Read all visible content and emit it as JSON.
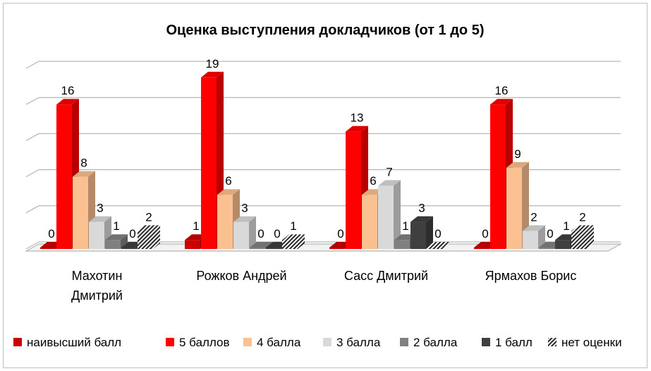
{
  "chart_data": {
    "type": "bar",
    "title": "Оценка выступления докладчиков (от 1 до 5)",
    "categories": [
      "Махотин Дмитрий",
      "Рожков Андрей",
      "Сасс Дмитрий",
      "Ярмахов Борис"
    ],
    "category_lines": [
      [
        "Махотин",
        "Дмитрий"
      ],
      [
        "Рожков Андрей"
      ],
      [
        "Сасс Дмитрий"
      ],
      [
        "Ярмахов Борис"
      ]
    ],
    "series": [
      {
        "name": "наивысший балл",
        "values": [
          0,
          1,
          0,
          0
        ],
        "color": "#cc0000"
      },
      {
        "name": "5 баллов",
        "values": [
          16,
          19,
          13,
          16
        ],
        "color": "#ff0000"
      },
      {
        "name": "4 балла",
        "values": [
          8,
          6,
          6,
          9
        ],
        "color": "#fac090"
      },
      {
        "name": "3 балла",
        "values": [
          3,
          3,
          7,
          2
        ],
        "color": "#d9d9d9"
      },
      {
        "name": "2 балла",
        "values": [
          1,
          0,
          1,
          0
        ],
        "color": "#808080"
      },
      {
        "name": "1 балл",
        "values": [
          0,
          0,
          3,
          1
        ],
        "color": "#3f3f3f"
      },
      {
        "name": "нет оценки",
        "values": [
          2,
          1,
          0,
          2
        ],
        "color": "#262626",
        "pattern": "diagonal-stripes"
      }
    ],
    "ylim": [
      0,
      20
    ],
    "grid": true,
    "data_labels": true,
    "legend_position": "bottom",
    "style": "3d-column"
  }
}
